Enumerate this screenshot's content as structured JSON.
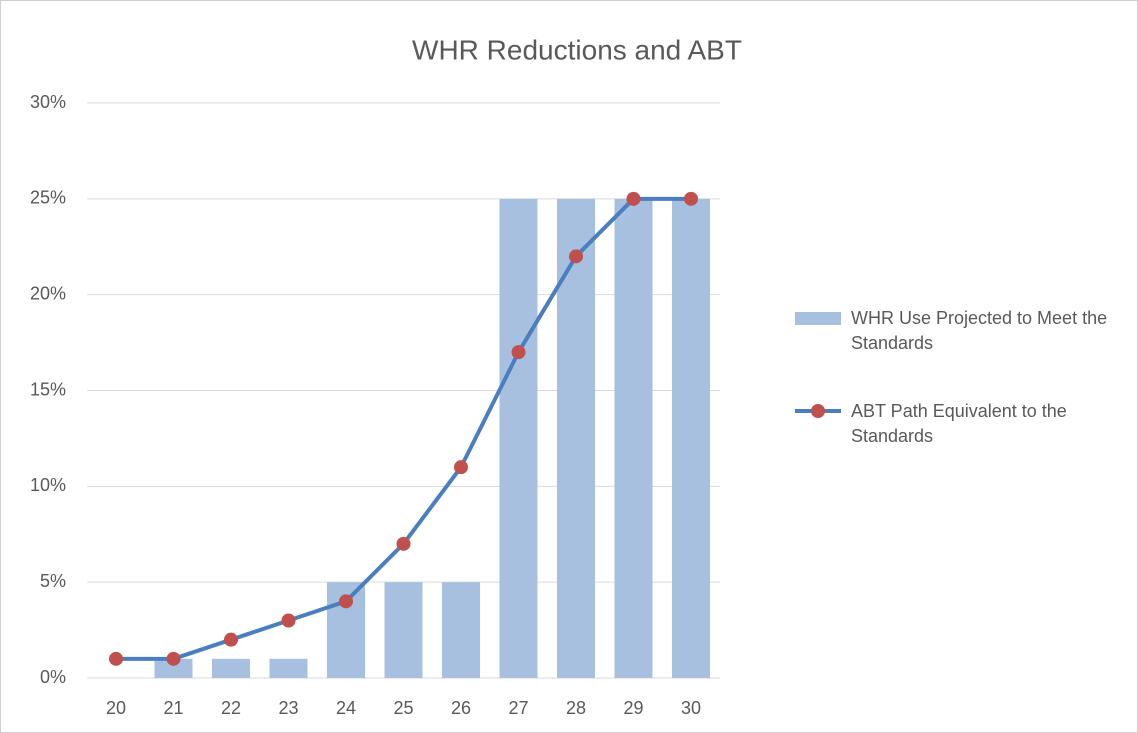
{
  "chart_data": {
    "type": "bar",
    "title": "WHR Reductions and ABT",
    "categories": [
      "20",
      "21",
      "22",
      "23",
      "24",
      "25",
      "26",
      "27",
      "28",
      "29",
      "30"
    ],
    "series": [
      {
        "name": "WHR Use Projected to Meet the Standards",
        "type": "bar",
        "color": "#a7c0df",
        "values": [
          0,
          1,
          1,
          1,
          5,
          5,
          5,
          25,
          25,
          25,
          25
        ]
      },
      {
        "name": "ABT Path Equivalent to the Standards",
        "type": "line",
        "color": "#4a7ebf",
        "marker_color": "#c0504d",
        "values": [
          1,
          1,
          2,
          3,
          4,
          7,
          11,
          17,
          22,
          25,
          25
        ]
      }
    ],
    "ylim": [
      0,
      30
    ],
    "yticks": [
      {
        "value": 0,
        "label": "0%"
      },
      {
        "value": 5,
        "label": "5%"
      },
      {
        "value": 10,
        "label": "10%"
      },
      {
        "value": 15,
        "label": "15%"
      },
      {
        "value": 20,
        "label": "20%"
      },
      {
        "value": 25,
        "label": "25%"
      },
      {
        "value": 30,
        "label": "30%"
      }
    ],
    "grid": true,
    "legend": "right"
  }
}
